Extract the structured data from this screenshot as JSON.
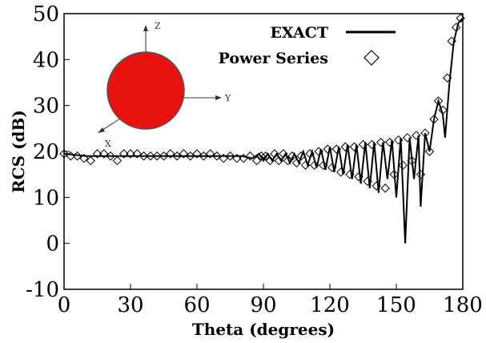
{
  "chart_data": {
    "type": "line",
    "x_label": "Theta (degrees)",
    "y_label": "RCS (dB)",
    "xlim": [
      0,
      180
    ],
    "xticks": [
      0,
      30,
      60,
      90,
      120,
      150,
      180
    ],
    "ylim": [
      -10,
      50
    ],
    "yticks": [
      -10,
      0,
      10,
      20,
      30,
      40,
      50
    ],
    "legend": "top-right",
    "inset_labels": [
      "Z",
      "Y",
      "X"
    ],
    "series": [
      {
        "name": "EXACT",
        "color": "#000000",
        "style": "line",
        "x": [
          0,
          10,
          20,
          30,
          40,
          50,
          60,
          70,
          80,
          85,
          88,
          90,
          92,
          94,
          96,
          98,
          100,
          102,
          104,
          106,
          108,
          110,
          112,
          114,
          116,
          118,
          120,
          122,
          124,
          126,
          128,
          130,
          132,
          134,
          136,
          138,
          140,
          142,
          144,
          146,
          148,
          150,
          152,
          154,
          156,
          158,
          160,
          161,
          163,
          165,
          167,
          169,
          171,
          172,
          174,
          176,
          178,
          180
        ],
        "values": [
          19.5,
          19,
          19,
          19,
          19,
          19,
          19,
          19,
          19,
          18.5,
          19.5,
          18,
          19.5,
          18,
          19.5,
          18,
          19.5,
          17.5,
          19.5,
          17.5,
          20,
          17,
          20,
          16.5,
          20.5,
          16,
          21,
          15.5,
          21,
          15,
          21.5,
          14,
          21.5,
          13,
          22,
          12,
          22,
          11,
          22,
          14,
          22.5,
          10,
          23,
          0,
          23,
          14,
          23.5,
          8,
          24,
          20,
          27,
          31,
          28,
          23,
          35,
          44,
          48,
          49
        ]
      },
      {
        "name": "Power Series",
        "color": "#000000",
        "style": "diamond",
        "x": [
          0,
          3,
          6,
          9,
          12,
          15,
          18,
          21,
          24,
          27,
          30,
          33,
          36,
          39,
          42,
          45,
          48,
          51,
          54,
          57,
          60,
          63,
          66,
          69,
          72,
          75,
          78,
          81,
          84,
          87,
          89,
          91,
          93,
          95,
          97,
          99,
          101,
          103,
          105,
          107,
          109,
          111,
          113,
          115,
          117,
          119,
          121,
          123,
          125,
          127,
          129,
          131,
          133,
          135,
          137,
          139,
          141,
          143,
          145,
          147,
          149,
          151,
          153,
          155,
          157,
          159,
          161,
          163,
          165,
          167,
          169,
          171,
          173,
          175,
          177,
          179
        ],
        "values": [
          19.5,
          19,
          19,
          18.5,
          18,
          19.5,
          19.5,
          19,
          18,
          19.5,
          19.5,
          19.5,
          19,
          19,
          19,
          19,
          19.5,
          19,
          19.5,
          19,
          19.5,
          19,
          19.5,
          19,
          18.5,
          19,
          18.5,
          18.5,
          19,
          18,
          19,
          19,
          18,
          19.5,
          18,
          19.5,
          18,
          19,
          17.5,
          19,
          17,
          19.5,
          17,
          20,
          17,
          20.5,
          16.5,
          20.5,
          15.5,
          21,
          15,
          21,
          14.5,
          21.5,
          13.5,
          21.5,
          12.5,
          22,
          12,
          22,
          15,
          22.5,
          17,
          23,
          18,
          23.5,
          15,
          24,
          20,
          27,
          31,
          29,
          36,
          44,
          47,
          49
        ]
      }
    ]
  }
}
